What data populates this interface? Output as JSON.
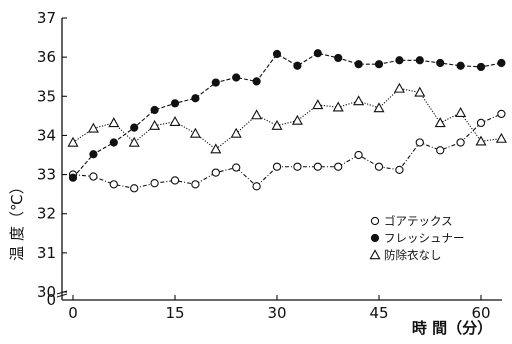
{
  "chart_data": {
    "type": "line",
    "title": "",
    "xlabel": "時 間（分）",
    "ylabel": "温 度（℃）",
    "xlim": [
      0,
      65
    ],
    "ylim": [
      30,
      37
    ],
    "xticks": [
      0,
      15,
      30,
      45,
      60
    ],
    "yticks": [
      30,
      31,
      32,
      33,
      34,
      35,
      36,
      37
    ],
    "origin_label": "0",
    "grid": false,
    "legend_position": "right",
    "series": [
      {
        "name": "ゴアテックス",
        "marker": "circle-open",
        "line_style": "dash-dot",
        "x": [
          0,
          3,
          6,
          9,
          12,
          15,
          18,
          21,
          24,
          27,
          30,
          33,
          36,
          39,
          42,
          45,
          48,
          51,
          54,
          57,
          60,
          63
        ],
        "y": [
          33.0,
          32.95,
          32.75,
          32.65,
          32.78,
          32.85,
          32.75,
          33.05,
          33.18,
          32.7,
          33.2,
          33.2,
          33.2,
          33.2,
          33.5,
          33.2,
          33.12,
          33.82,
          33.62,
          33.82,
          34.32,
          34.55
        ]
      },
      {
        "name": "フレッシュナー",
        "marker": "circle-filled",
        "line_style": "dash",
        "x": [
          0,
          3,
          6,
          9,
          12,
          15,
          18,
          21,
          24,
          27,
          30,
          33,
          36,
          39,
          42,
          45,
          48,
          51,
          54,
          57,
          60,
          63
        ],
        "y": [
          32.92,
          33.52,
          33.82,
          34.2,
          34.65,
          34.82,
          34.95,
          35.35,
          35.48,
          35.38,
          36.08,
          35.78,
          36.1,
          35.98,
          35.82,
          35.82,
          35.92,
          35.92,
          35.85,
          35.78,
          35.75,
          35.85
        ]
      },
      {
        "name": "防除衣なし",
        "marker": "triangle-open",
        "line_style": "dotted",
        "x": [
          0,
          3,
          6,
          9,
          12,
          15,
          18,
          21,
          24,
          27,
          30,
          33,
          36,
          39,
          42,
          45,
          48,
          51,
          54,
          57,
          60,
          63
        ],
        "y": [
          33.82,
          34.18,
          34.32,
          33.82,
          34.25,
          34.35,
          34.05,
          33.65,
          34.05,
          34.52,
          34.25,
          34.38,
          34.78,
          34.72,
          34.88,
          34.7,
          35.2,
          35.1,
          34.32,
          34.58,
          33.85,
          33.92
        ]
      }
    ]
  }
}
